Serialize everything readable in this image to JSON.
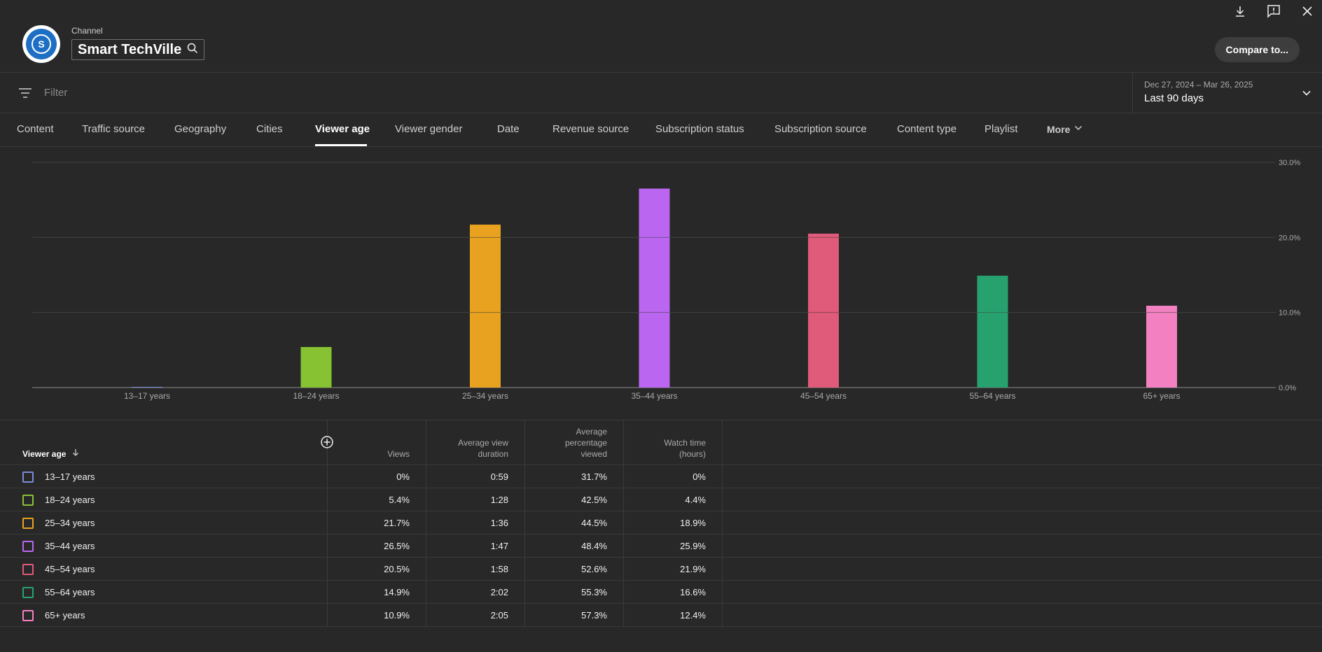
{
  "header": {
    "channel_label": "Channel",
    "channel_name": "Smart TechVille",
    "compare_label": "Compare to..."
  },
  "filter": {
    "placeholder": "Filter",
    "date_range": "Dec 27, 2024 – Mar 26, 2025",
    "date_preset": "Last 90 days"
  },
  "tabs": [
    {
      "label": "Content"
    },
    {
      "label": "Traffic source"
    },
    {
      "label": "Geography"
    },
    {
      "label": "Cities"
    },
    {
      "label": "Viewer age"
    },
    {
      "label": "Viewer gender"
    },
    {
      "label": "Date"
    },
    {
      "label": "Revenue source"
    },
    {
      "label": "Subscription status"
    },
    {
      "label": "Subscription source"
    },
    {
      "label": "Content type"
    },
    {
      "label": "Playlist"
    },
    {
      "label": "More"
    }
  ],
  "active_tab": "Viewer age",
  "chart_data": {
    "type": "bar",
    "categories": [
      "13–17 years",
      "18–24 years",
      "25–34 years",
      "35–44 years",
      "45–54 years",
      "55–64 years",
      "65+ years"
    ],
    "values": [
      0,
      5.4,
      21.7,
      26.5,
      20.5,
      14.9,
      10.9
    ],
    "colors": [
      "#7b8bd9",
      "#86c232",
      "#e8a21f",
      "#bb66f1",
      "#e05a79",
      "#27a26f",
      "#f380c0"
    ],
    "ylim": [
      0,
      30
    ],
    "yticks": [
      "0.0%",
      "10.0%",
      "20.0%",
      "30.0%"
    ],
    "ytick_values": [
      0,
      10,
      20,
      30
    ],
    "grid": true
  },
  "table": {
    "headers": {
      "age": "Viewer age",
      "views": "Views",
      "avg_duration": [
        "Average view",
        "duration"
      ],
      "avg_pct": [
        "Average",
        "percentage",
        "viewed"
      ],
      "watch_time": [
        "Watch time",
        "(hours)"
      ]
    },
    "rows": [
      {
        "age": "13–17 years",
        "views": "0%",
        "avg_duration": "0:59",
        "avg_pct": "31.7%",
        "watch_time": "0%"
      },
      {
        "age": "18–24 years",
        "views": "5.4%",
        "avg_duration": "1:28",
        "avg_pct": "42.5%",
        "watch_time": "4.4%"
      },
      {
        "age": "25–34 years",
        "views": "21.7%",
        "avg_duration": "1:36",
        "avg_pct": "44.5%",
        "watch_time": "18.9%"
      },
      {
        "age": "35–44 years",
        "views": "26.5%",
        "avg_duration": "1:47",
        "avg_pct": "48.4%",
        "watch_time": "25.9%"
      },
      {
        "age": "45–54 years",
        "views": "20.5%",
        "avg_duration": "1:58",
        "avg_pct": "52.6%",
        "watch_time": "21.9%"
      },
      {
        "age": "55–64 years",
        "views": "14.9%",
        "avg_duration": "2:02",
        "avg_pct": "55.3%",
        "watch_time": "16.6%"
      },
      {
        "age": "65+ years",
        "views": "10.9%",
        "avg_duration": "2:05",
        "avg_pct": "57.3%",
        "watch_time": "12.4%"
      }
    ]
  },
  "icons": {
    "download": "download-icon",
    "feedback": "feedback-icon",
    "close": "close-icon",
    "search": "search-icon",
    "filter": "filter-icon",
    "sort": "sort-arrow-down-icon",
    "add_column": "add-column-icon"
  }
}
